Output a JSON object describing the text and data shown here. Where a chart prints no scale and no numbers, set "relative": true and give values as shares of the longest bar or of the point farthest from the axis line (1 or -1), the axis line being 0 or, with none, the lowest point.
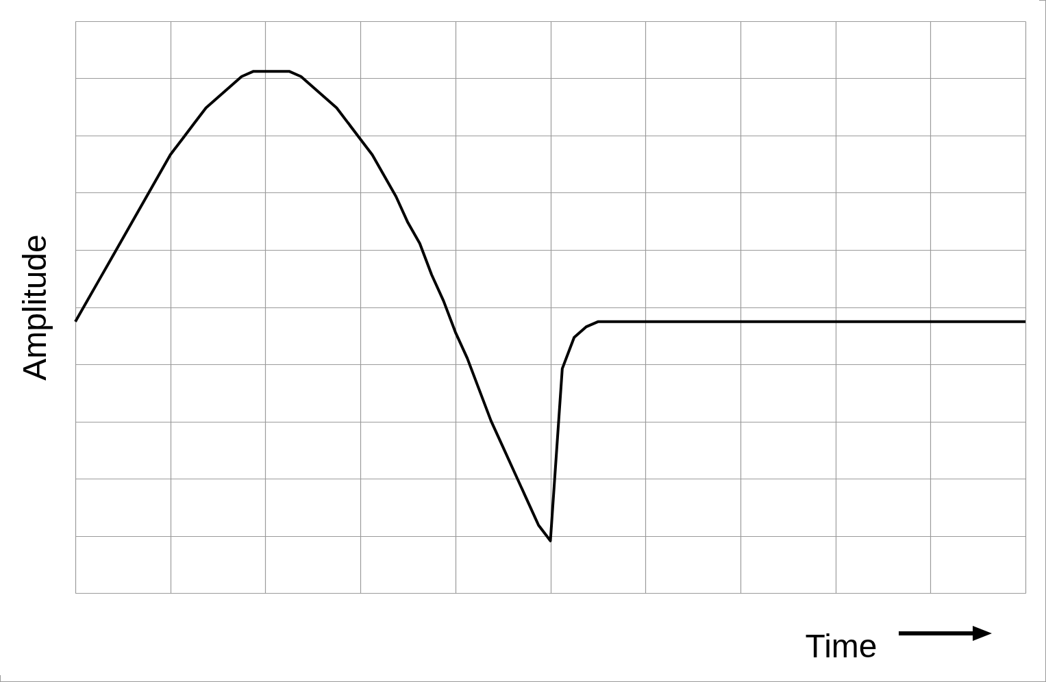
{
  "chart_data": {
    "type": "line",
    "xlabel": "Time",
    "ylabel": "Amplitude",
    "relative": true,
    "grid": true,
    "legend": false,
    "marker": "none",
    "line_style": "solid",
    "categories": [
      null,
      null,
      null,
      null,
      null,
      null,
      null,
      null,
      null,
      null,
      null,
      null,
      null,
      null,
      null,
      null,
      null,
      null,
      null,
      null,
      null,
      null,
      null,
      null,
      null,
      null,
      null,
      null,
      null,
      null,
      null,
      null,
      null,
      null,
      null,
      null,
      null,
      null,
      null,
      null,
      null,
      null,
      null,
      null,
      null,
      null,
      null,
      null,
      null,
      null,
      null,
      null,
      null,
      null,
      null,
      null,
      null,
      null,
      null,
      null,
      null,
      null,
      null,
      null,
      null,
      null,
      null,
      null,
      null,
      null,
      null,
      null,
      null,
      null,
      null,
      null,
      null,
      null,
      null,
      null,
      null
    ],
    "series": [
      {
        "color": "#000000",
        "values": [
          0.52,
          0.56,
          0.6,
          0.64,
          0.68,
          0.72,
          0.76,
          0.8,
          0.84,
          0.87,
          0.9,
          0.93,
          0.95,
          0.97,
          0.99,
          1.0,
          1.0,
          1.0,
          1.0,
          0.99,
          0.97,
          0.95,
          0.93,
          0.9,
          0.87,
          0.84,
          0.8,
          0.76,
          0.71,
          0.67,
          0.61,
          0.56,
          0.5,
          0.45,
          0.39,
          0.33,
          0.28,
          0.23,
          0.18,
          0.13,
          0.1,
          0.43,
          0.49,
          0.51,
          0.52,
          0.52,
          0.52,
          0.52,
          0.52,
          0.52,
          0.52,
          0.52,
          0.52,
          0.52,
          0.52,
          0.52,
          0.52,
          0.52,
          0.52,
          0.52,
          0.52,
          0.52,
          0.52,
          0.52,
          0.52,
          0.52,
          0.52,
          0.52,
          0.52,
          0.52,
          0.52,
          0.52,
          0.52,
          0.52,
          0.52,
          0.52,
          0.52,
          0.52,
          0.52,
          0.52,
          0.52
        ]
      }
    ]
  }
}
